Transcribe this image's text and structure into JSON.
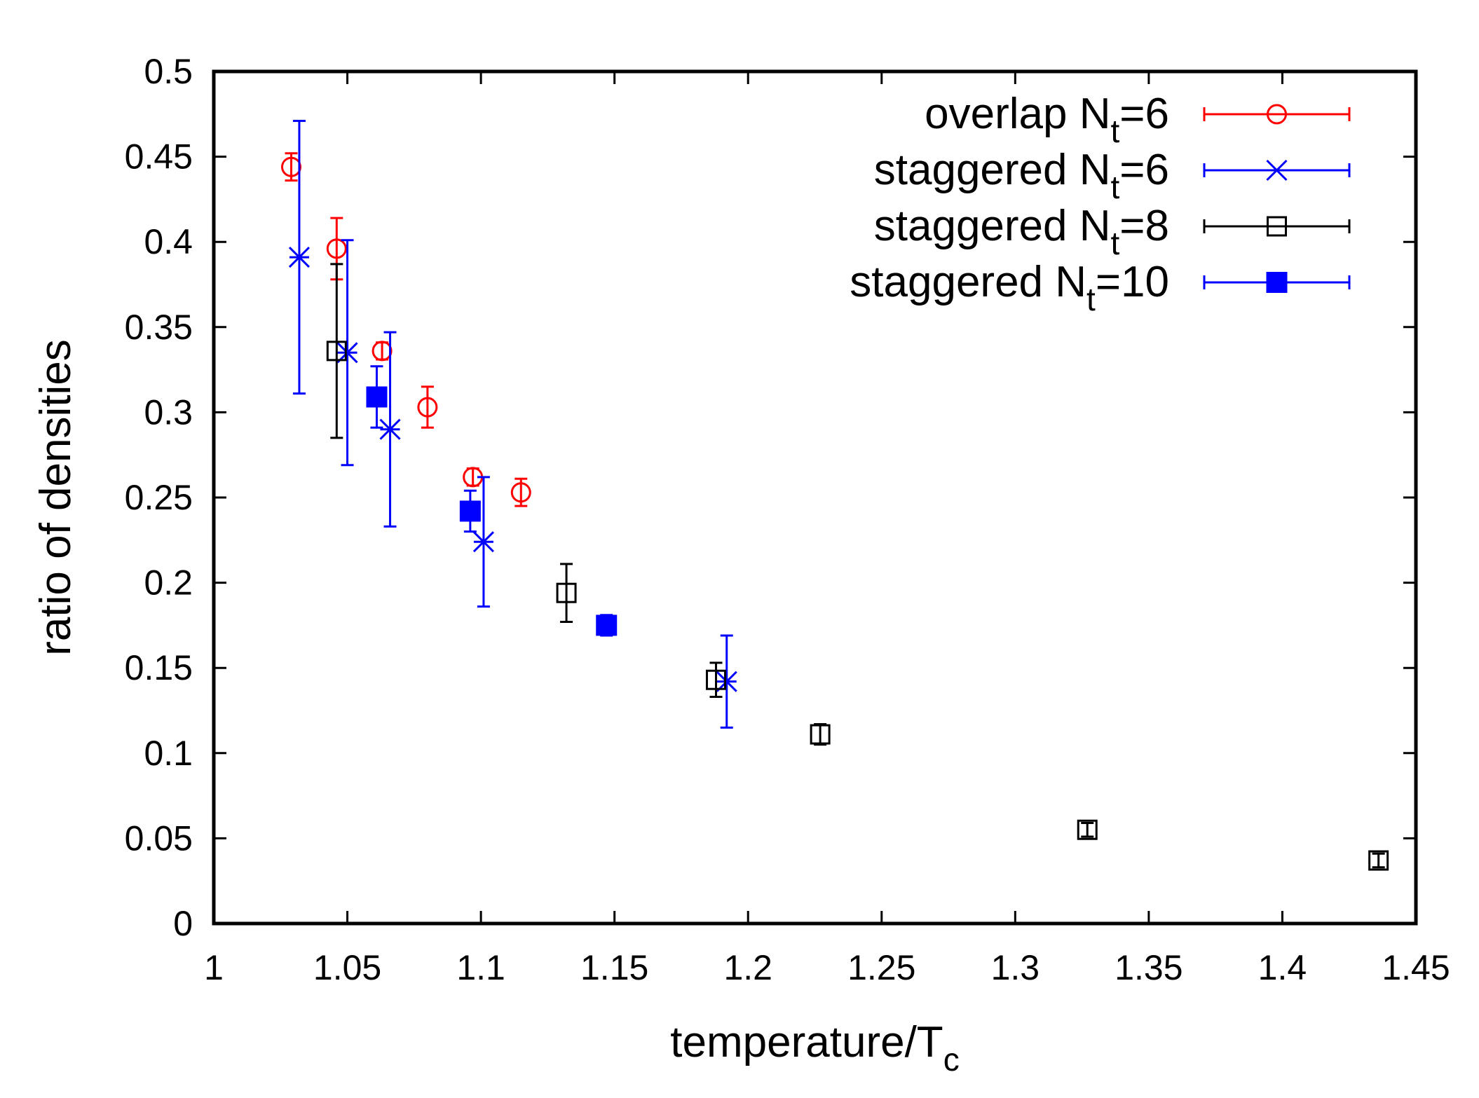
{
  "chart_data": {
    "type": "scatter",
    "title": "",
    "xlabel": "temperature/T",
    "xlabel_sub": "c",
    "ylabel": "ratio of densities",
    "xlim": [
      1,
      1.45
    ],
    "ylim": [
      0,
      0.5
    ],
    "xticks": [
      "1",
      "1.05",
      "1.1",
      "1.15",
      "1.2",
      "1.25",
      "1.3",
      "1.35",
      "1.4",
      "1.45"
    ],
    "yticks": [
      "0",
      "0.05",
      "0.1",
      "0.15",
      "0.2",
      "0.25",
      "0.3",
      "0.35",
      "0.4",
      "0.45",
      "0.5"
    ],
    "grid": false,
    "legend_position": "top-right",
    "series": [
      {
        "name": "overlap N",
        "name_sub": "t",
        "name_suffix": "=6",
        "color": "#ff0000",
        "marker": "open-circle",
        "points": [
          {
            "x": 1.029,
            "y": 0.444,
            "err": 0.008
          },
          {
            "x": 1.046,
            "y": 0.396,
            "err": 0.018
          },
          {
            "x": 1.063,
            "y": 0.336,
            "err": 0.005
          },
          {
            "x": 1.08,
            "y": 0.303,
            "err": 0.012
          },
          {
            "x": 1.097,
            "y": 0.262,
            "err": 0.005
          },
          {
            "x": 1.115,
            "y": 0.253,
            "err": 0.008
          }
        ]
      },
      {
        "name": "staggered N",
        "name_sub": "t",
        "name_suffix": "=6",
        "color": "#0000ff",
        "marker": "star",
        "points": [
          {
            "x": 1.032,
            "y": 0.391,
            "err": 0.08
          },
          {
            "x": 1.05,
            "y": 0.335,
            "err": 0.066
          },
          {
            "x": 1.066,
            "y": 0.29,
            "err": 0.057
          },
          {
            "x": 1.101,
            "y": 0.224,
            "err": 0.038
          },
          {
            "x": 1.192,
            "y": 0.142,
            "err": 0.027
          }
        ]
      },
      {
        "name": "staggered N",
        "name_sub": "t",
        "name_suffix": "=8",
        "color": "#000000",
        "marker": "open-square",
        "points": [
          {
            "x": 1.046,
            "y": 0.336,
            "err": 0.051
          },
          {
            "x": 1.132,
            "y": 0.194,
            "err": 0.017
          },
          {
            "x": 1.188,
            "y": 0.143,
            "err": 0.01
          },
          {
            "x": 1.227,
            "y": 0.111,
            "err": 0.006
          },
          {
            "x": 1.327,
            "y": 0.055,
            "err": 0.004
          },
          {
            "x": 1.436,
            "y": 0.037,
            "err": 0.004
          }
        ]
      },
      {
        "name": "staggered N",
        "name_sub": "t",
        "name_suffix": "=10",
        "color": "#0000ff",
        "marker": "filled-square",
        "points": [
          {
            "x": 1.061,
            "y": 0.309,
            "err": 0.018
          },
          {
            "x": 1.096,
            "y": 0.242,
            "err": 0.012
          },
          {
            "x": 1.147,
            "y": 0.175,
            "err": 0.006
          }
        ]
      }
    ]
  }
}
